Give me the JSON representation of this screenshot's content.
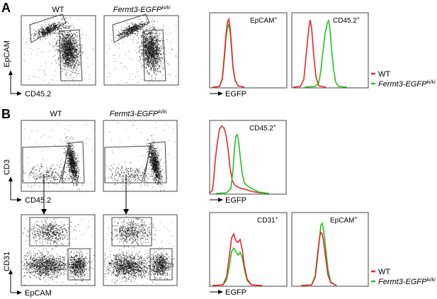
{
  "panels": [
    {
      "letter": "A"
    },
    {
      "letter": "B"
    }
  ],
  "columns": {
    "wt": "WT",
    "ki_base": "Fermt3-EGFP",
    "ki_sup": "ki/ki"
  },
  "axes": {
    "epcam": "EpCAM",
    "cd45": "CD45.2",
    "cd3": "CD3",
    "cd31": "CD31",
    "egfp": "EGFP"
  },
  "histo_titles": {
    "a_epcam": "EpCAM",
    "a_cd45": "CD45.2",
    "b_cd45": "CD45.2",
    "b_cd31": "CD31",
    "b_epcam": "EpCAM",
    "sup": "+"
  },
  "legend": {
    "wt": "WT",
    "ki_base": "Fermt3-EGFP",
    "ki_sup": "ki/ki"
  },
  "colors": {
    "wt": "#e8262e",
    "ki": "#22c21c"
  }
}
